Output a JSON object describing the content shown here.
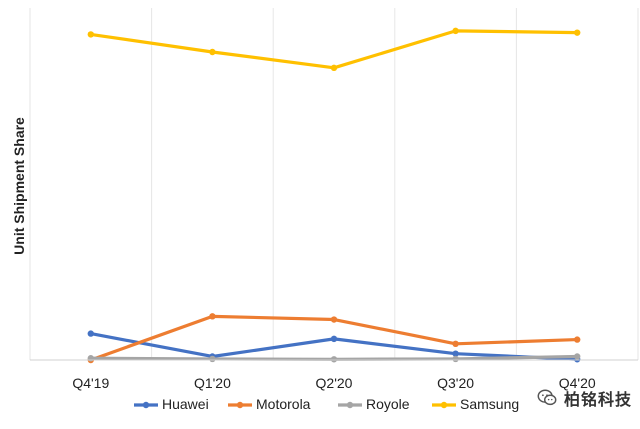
{
  "chart_data": {
    "type": "line",
    "title": "",
    "xlabel": "",
    "ylabel": "Unit Shipment Share",
    "categories": [
      "Q4'19",
      "Q1'20",
      "Q2'20",
      "Q3'20",
      "Q4'20"
    ],
    "ylim": [
      0,
      100
    ],
    "grid": "vertical",
    "legend_position": "bottom",
    "series": [
      {
        "name": "Huawei",
        "color": "#4472C4",
        "values": [
          7.5,
          1.0,
          6.0,
          1.8,
          0.2
        ]
      },
      {
        "name": "Motorola",
        "color": "#ED7D31",
        "values": [
          0.0,
          12.4,
          11.5,
          4.6,
          5.8
        ]
      },
      {
        "name": "Royole",
        "color": "#A5A5A5",
        "values": [
          0.5,
          0.3,
          0.2,
          0.3,
          1.0
        ]
      },
      {
        "name": "Samsung",
        "color": "#FFC000",
        "values": [
          92.5,
          87.5,
          83.0,
          93.5,
          93.0
        ]
      }
    ]
  },
  "watermark": {
    "text": "柏铭科技",
    "icon": "wechat-icon"
  }
}
